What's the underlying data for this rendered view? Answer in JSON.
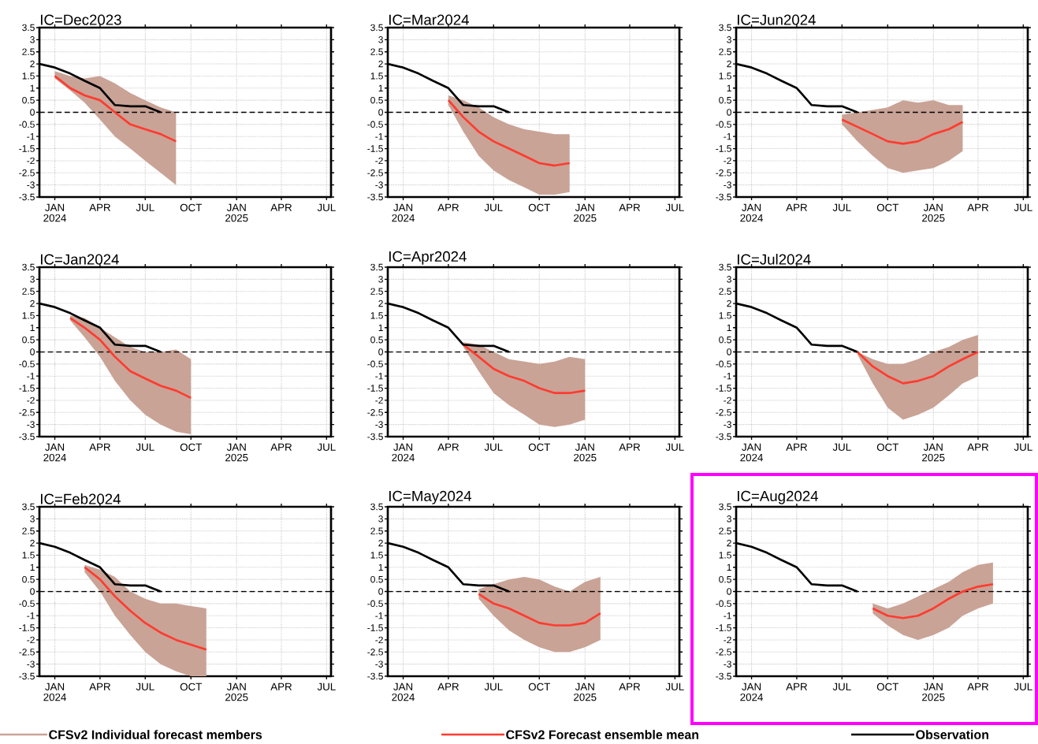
{
  "chart_data": [
    {
      "type": "line",
      "title": "IC=Dec2023",
      "legend": "bottom",
      "grid": true,
      "xlim": [
        "2023-12-01",
        "2025-07-10"
      ],
      "ylim": [
        -3.5,
        3.5
      ],
      "xticks": [
        {
          "value": "2024-01-01",
          "label": "JAN 2024"
        },
        {
          "value": "2024-04-01",
          "label": "APR"
        },
        {
          "value": "2024-07-01",
          "label": "JUL"
        },
        {
          "value": "2024-10-01",
          "label": "OCT"
        },
        {
          "value": "2025-01-01",
          "label": "JAN 2025"
        },
        {
          "value": "2025-04-01",
          "label": "APR"
        },
        {
          "value": "2025-07-01",
          "label": "JUL"
        }
      ],
      "yticks": [
        -3.5,
        -3,
        -2.5,
        -2,
        -1.5,
        -1,
        -0.5,
        0,
        0.5,
        1,
        1.5,
        2,
        2.5,
        3,
        3.5
      ],
      "annotations": [
        "CFSv2 Individual forecast members"
      ],
      "ref_lines": [
        {
          "axis": "y",
          "value": 0,
          "color": "#000000",
          "line_style": "dashed"
        }
      ],
      "series": [
        {
          "name": "CFSv2 Forecast ensemble mean",
          "color": "#ff3b30",
          "x": [
            "2024-01-01",
            "2024-02-01",
            "2024-03-01",
            "2024-04-01",
            "2024-05-01",
            "2024-06-01",
            "2024-07-01",
            "2024-08-01",
            "2024-09-01"
          ],
          "values": [
            1.5,
            1.0,
            0.7,
            0.5,
            0.0,
            -0.5,
            -0.7,
            -0.9,
            -1.2
          ],
          "lower": [
            1.4,
            0.9,
            0.4,
            -0.3,
            -1.0,
            -1.5,
            -2.0,
            -2.5,
            -3.0
          ],
          "upper": [
            1.7,
            1.5,
            1.4,
            1.5,
            1.2,
            0.8,
            0.5,
            0.2,
            0.0
          ]
        },
        {
          "name": "Observation",
          "color": "#000000",
          "x": [
            "2023-12-01",
            "2024-01-01",
            "2024-02-01",
            "2024-03-01",
            "2024-04-01",
            "2024-05-01",
            "2024-06-01",
            "2024-07-01",
            "2024-08-01"
          ],
          "values": [
            2.0,
            1.85,
            1.6,
            1.3,
            1.0,
            0.3,
            0.25,
            0.25,
            0.0
          ]
        }
      ]
    },
    {
      "type": "line",
      "title": "IC=Mar2024",
      "grid": true,
      "xlim": [
        "2023-12-01",
        "2025-07-10"
      ],
      "ylim": [
        -3.5,
        3.5
      ],
      "xticks": [
        {
          "value": "2024-01-01",
          "label": "JAN 2024"
        },
        {
          "value": "2024-04-01",
          "label": "APR"
        },
        {
          "value": "2024-07-01",
          "label": "JUL"
        },
        {
          "value": "2024-10-01",
          "label": "OCT"
        },
        {
          "value": "2025-01-01",
          "label": "JAN 2025"
        },
        {
          "value": "2025-04-01",
          "label": "APR"
        },
        {
          "value": "2025-07-01",
          "label": "JUL"
        }
      ],
      "yticks": [
        -3.5,
        -3,
        -2.5,
        -2,
        -1.5,
        -1,
        -0.5,
        0,
        0.5,
        1,
        1.5,
        2,
        2.5,
        3,
        3.5
      ],
      "ref_lines": [
        {
          "axis": "y",
          "value": 0,
          "color": "#000000",
          "line_style": "dashed"
        }
      ],
      "series": [
        {
          "color": "#ff3b30",
          "x": [
            "2024-04-01",
            "2024-05-01",
            "2024-06-01",
            "2024-07-01",
            "2024-08-01",
            "2024-09-01",
            "2024-10-01",
            "2024-11-01",
            "2024-12-01"
          ],
          "values": [
            0.5,
            -0.2,
            -0.8,
            -1.2,
            -1.5,
            -1.8,
            -2.1,
            -2.2,
            -2.1
          ],
          "lower": [
            0.3,
            -0.8,
            -1.8,
            -2.4,
            -2.8,
            -3.1,
            -3.4,
            -3.4,
            -3.3
          ],
          "upper": [
            0.7,
            0.5,
            0.2,
            -0.2,
            -0.5,
            -0.7,
            -0.8,
            -0.9,
            -0.9
          ]
        },
        {
          "color": "#000000",
          "x": [
            "2023-12-01",
            "2024-01-01",
            "2024-02-01",
            "2024-03-01",
            "2024-04-01",
            "2024-05-01",
            "2024-06-01",
            "2024-07-01",
            "2024-08-01"
          ],
          "values": [
            2.0,
            1.85,
            1.6,
            1.3,
            1.0,
            0.3,
            0.25,
            0.25,
            0.0
          ]
        }
      ]
    },
    {
      "type": "line",
      "title": "IC=Jun2024",
      "grid": true,
      "xlim": [
        "2023-12-01",
        "2025-07-10"
      ],
      "ylim": [
        -3.5,
        3.5
      ],
      "xticks": [
        {
          "value": "2024-01-01",
          "label": "JAN 2024"
        },
        {
          "value": "2024-04-01",
          "label": "APR"
        },
        {
          "value": "2024-07-01",
          "label": "JUL"
        },
        {
          "value": "2024-10-01",
          "label": "OCT"
        },
        {
          "value": "2025-01-01",
          "label": "JAN 2025"
        },
        {
          "value": "2025-04-01",
          "label": "APR"
        },
        {
          "value": "2025-07-01",
          "label": "JUL"
        }
      ],
      "yticks": [
        -3.5,
        -3,
        -2.5,
        -2,
        -1.5,
        -1,
        -0.5,
        0,
        0.5,
        1,
        1.5,
        2,
        2.5,
        3,
        3.5
      ],
      "ref_lines": [
        {
          "axis": "y",
          "value": 0,
          "color": "#000000",
          "line_style": "dashed"
        }
      ],
      "series": [
        {
          "color": "#ff3b30",
          "x": [
            "2024-07-01",
            "2024-08-01",
            "2024-09-01",
            "2024-10-01",
            "2024-11-01",
            "2024-12-01",
            "2025-01-01",
            "2025-02-01",
            "2025-03-01"
          ],
          "values": [
            -0.3,
            -0.6,
            -0.9,
            -1.2,
            -1.3,
            -1.2,
            -0.9,
            -0.7,
            -0.4
          ],
          "lower": [
            -0.5,
            -1.2,
            -1.8,
            -2.3,
            -2.5,
            -2.4,
            -2.3,
            -2.0,
            -1.6
          ],
          "upper": [
            -0.1,
            0.0,
            0.1,
            0.2,
            0.5,
            0.4,
            0.5,
            0.3,
            0.3
          ]
        },
        {
          "color": "#000000",
          "x": [
            "2023-12-01",
            "2024-01-01",
            "2024-02-01",
            "2024-03-01",
            "2024-04-01",
            "2024-05-01",
            "2024-06-01",
            "2024-07-01",
            "2024-08-01"
          ],
          "values": [
            2.0,
            1.85,
            1.6,
            1.3,
            1.0,
            0.3,
            0.25,
            0.25,
            0.0
          ]
        }
      ]
    },
    {
      "type": "line",
      "title": "IC=Jan2024",
      "grid": true,
      "xlim": [
        "2023-12-01",
        "2025-07-10"
      ],
      "ylim": [
        -3.5,
        3.5
      ],
      "xticks": [
        {
          "value": "2024-01-01",
          "label": "JAN 2024"
        },
        {
          "value": "2024-04-01",
          "label": "APR"
        },
        {
          "value": "2024-07-01",
          "label": "JUL"
        },
        {
          "value": "2024-10-01",
          "label": "OCT"
        },
        {
          "value": "2025-01-01",
          "label": "JAN 2025"
        },
        {
          "value": "2025-04-01",
          "label": "APR"
        },
        {
          "value": "2025-07-01",
          "label": "JUL"
        }
      ],
      "yticks": [
        -3.5,
        -3,
        -2.5,
        -2,
        -1.5,
        -1,
        -0.5,
        0,
        0.5,
        1,
        1.5,
        2,
        2.5,
        3,
        3.5
      ],
      "ref_lines": [
        {
          "axis": "y",
          "value": 0,
          "color": "#000000",
          "line_style": "dashed"
        }
      ],
      "series": [
        {
          "color": "#ff3b30",
          "x": [
            "2024-02-01",
            "2024-03-01",
            "2024-04-01",
            "2024-05-01",
            "2024-06-01",
            "2024-07-01",
            "2024-08-01",
            "2024-09-01",
            "2024-10-01"
          ],
          "values": [
            1.4,
            1.0,
            0.5,
            -0.2,
            -0.8,
            -1.1,
            -1.4,
            -1.6,
            -1.9
          ],
          "lower": [
            1.3,
            0.6,
            -0.2,
            -1.2,
            -2.0,
            -2.6,
            -3.0,
            -3.3,
            -3.4
          ],
          "upper": [
            1.5,
            1.4,
            1.0,
            0.6,
            0.2,
            0.0,
            0.0,
            0.1,
            -0.3
          ]
        },
        {
          "color": "#000000",
          "x": [
            "2023-12-01",
            "2024-01-01",
            "2024-02-01",
            "2024-03-01",
            "2024-04-01",
            "2024-05-01",
            "2024-06-01",
            "2024-07-01",
            "2024-08-01"
          ],
          "values": [
            2.0,
            1.85,
            1.6,
            1.3,
            1.0,
            0.3,
            0.25,
            0.25,
            0.0
          ]
        }
      ]
    },
    {
      "type": "line",
      "title": "IC=Apr2024",
      "grid": true,
      "xlim": [
        "2023-12-01",
        "2025-07-10"
      ],
      "ylim": [
        -3.5,
        3.5
      ],
      "xticks": [
        {
          "value": "2024-01-01",
          "label": "JAN 2024"
        },
        {
          "value": "2024-04-01",
          "label": "APR"
        },
        {
          "value": "2024-07-01",
          "label": "JUL"
        },
        {
          "value": "2024-10-01",
          "label": "OCT"
        },
        {
          "value": "2025-01-01",
          "label": "JAN 2025"
        },
        {
          "value": "2025-04-01",
          "label": "APR"
        },
        {
          "value": "2025-07-01",
          "label": "JUL"
        }
      ],
      "yticks": [
        -3.5,
        -3,
        -2.5,
        -2,
        -1.5,
        -1,
        -0.5,
        0,
        0.5,
        1,
        1.5,
        2,
        2.5,
        3,
        3.5
      ],
      "ref_lines": [
        {
          "axis": "y",
          "value": 0,
          "color": "#000000",
          "line_style": "dashed"
        }
      ],
      "series": [
        {
          "color": "#ff3b30",
          "x": [
            "2024-05-01",
            "2024-06-01",
            "2024-07-01",
            "2024-08-01",
            "2024-09-01",
            "2024-10-01",
            "2024-11-01",
            "2024-12-01",
            "2025-01-01"
          ],
          "values": [
            0.3,
            -0.2,
            -0.7,
            -1.0,
            -1.2,
            -1.5,
            -1.7,
            -1.7,
            -1.6
          ],
          "lower": [
            0.2,
            -0.8,
            -1.7,
            -2.2,
            -2.6,
            -3.0,
            -3.1,
            -3.0,
            -2.8
          ],
          "upper": [
            0.4,
            0.3,
            0.0,
            -0.3,
            -0.4,
            -0.5,
            -0.4,
            -0.2,
            -0.3
          ]
        },
        {
          "color": "#000000",
          "x": [
            "2023-12-01",
            "2024-01-01",
            "2024-02-01",
            "2024-03-01",
            "2024-04-01",
            "2024-05-01",
            "2024-06-01",
            "2024-07-01",
            "2024-08-01"
          ],
          "values": [
            2.0,
            1.85,
            1.6,
            1.3,
            1.0,
            0.3,
            0.25,
            0.25,
            0.0
          ]
        }
      ]
    },
    {
      "type": "line",
      "title": "IC=Jul2024",
      "grid": true,
      "xlim": [
        "2023-12-01",
        "2025-07-10"
      ],
      "ylim": [
        -3.5,
        3.5
      ],
      "xticks": [
        {
          "value": "2024-01-01",
          "label": "JAN 2024"
        },
        {
          "value": "2024-04-01",
          "label": "APR"
        },
        {
          "value": "2024-07-01",
          "label": "JUL"
        },
        {
          "value": "2024-10-01",
          "label": "OCT"
        },
        {
          "value": "2025-01-01",
          "label": "JAN 2025"
        },
        {
          "value": "2025-04-01",
          "label": "APR"
        },
        {
          "value": "2025-07-01",
          "label": "JUL"
        }
      ],
      "yticks": [
        -3.5,
        -3,
        -2.5,
        -2,
        -1.5,
        -1,
        -0.5,
        0,
        0.5,
        1,
        1.5,
        2,
        2.5,
        3,
        3.5
      ],
      "ref_lines": [
        {
          "axis": "y",
          "value": 0,
          "color": "#000000",
          "line_style": "dashed"
        }
      ],
      "series": [
        {
          "color": "#ff3b30",
          "x": [
            "2024-08-01",
            "2024-09-01",
            "2024-10-01",
            "2024-11-01",
            "2024-12-01",
            "2025-01-01",
            "2025-02-01",
            "2025-03-01",
            "2025-04-01"
          ],
          "values": [
            0.0,
            -0.6,
            -1.0,
            -1.3,
            -1.2,
            -1.0,
            -0.6,
            -0.3,
            0.0
          ],
          "lower": [
            -0.1,
            -1.3,
            -2.3,
            -2.8,
            -2.6,
            -2.3,
            -1.8,
            -1.3,
            -1.0
          ],
          "upper": [
            0.0,
            -0.3,
            -0.5,
            -0.5,
            -0.3,
            0.0,
            0.2,
            0.5,
            0.7
          ]
        },
        {
          "color": "#000000",
          "x": [
            "2023-12-01",
            "2024-01-01",
            "2024-02-01",
            "2024-03-01",
            "2024-04-01",
            "2024-05-01",
            "2024-06-01",
            "2024-07-01",
            "2024-08-01"
          ],
          "values": [
            2.0,
            1.85,
            1.6,
            1.3,
            1.0,
            0.3,
            0.25,
            0.25,
            0.0
          ]
        }
      ]
    },
    {
      "type": "line",
      "title": "IC=Feb2024",
      "grid": true,
      "xlim": [
        "2023-12-01",
        "2025-07-10"
      ],
      "ylim": [
        -3.5,
        3.5
      ],
      "xticks": [
        {
          "value": "2024-01-01",
          "label": "JAN 2024"
        },
        {
          "value": "2024-04-01",
          "label": "APR"
        },
        {
          "value": "2024-07-01",
          "label": "JUL"
        },
        {
          "value": "2024-10-01",
          "label": "OCT"
        },
        {
          "value": "2025-01-01",
          "label": "JAN 2025"
        },
        {
          "value": "2025-04-01",
          "label": "APR"
        },
        {
          "value": "2025-07-01",
          "label": "JUL"
        }
      ],
      "yticks": [
        -3.5,
        -3,
        -2.5,
        -2,
        -1.5,
        -1,
        -0.5,
        0,
        0.5,
        1,
        1.5,
        2,
        2.5,
        3,
        3.5
      ],
      "ref_lines": [
        {
          "axis": "y",
          "value": 0,
          "color": "#000000",
          "line_style": "dashed"
        }
      ],
      "series": [
        {
          "color": "#ff3b30",
          "x": [
            "2024-03-01",
            "2024-04-01",
            "2024-05-01",
            "2024-06-01",
            "2024-07-01",
            "2024-08-01",
            "2024-09-01",
            "2024-10-01",
            "2024-11-01"
          ],
          "values": [
            1.0,
            0.5,
            -0.2,
            -0.8,
            -1.3,
            -1.7,
            -2.0,
            -2.2,
            -2.4
          ],
          "lower": [
            0.8,
            0.0,
            -1.0,
            -1.8,
            -2.5,
            -3.0,
            -3.3,
            -3.5,
            -3.5
          ],
          "upper": [
            1.1,
            0.9,
            0.6,
            0.0,
            -0.3,
            -0.5,
            -0.5,
            -0.6,
            -0.7
          ]
        },
        {
          "color": "#000000",
          "x": [
            "2023-12-01",
            "2024-01-01",
            "2024-02-01",
            "2024-03-01",
            "2024-04-01",
            "2024-05-01",
            "2024-06-01",
            "2024-07-01",
            "2024-08-01"
          ],
          "values": [
            2.0,
            1.85,
            1.6,
            1.3,
            1.0,
            0.3,
            0.25,
            0.25,
            0.0
          ]
        }
      ]
    },
    {
      "type": "line",
      "title": "IC=May2024",
      "grid": true,
      "xlim": [
        "2023-12-01",
        "2025-07-10"
      ],
      "ylim": [
        -3.5,
        3.5
      ],
      "xticks": [
        {
          "value": "2024-01-01",
          "label": "JAN 2024"
        },
        {
          "value": "2024-04-01",
          "label": "APR"
        },
        {
          "value": "2024-07-01",
          "label": "JUL"
        },
        {
          "value": "2024-10-01",
          "label": "OCT"
        },
        {
          "value": "2025-01-01",
          "label": "JAN 2025"
        },
        {
          "value": "2025-04-01",
          "label": "APR"
        },
        {
          "value": "2025-07-01",
          "label": "JUL"
        }
      ],
      "yticks": [
        -3.5,
        -3,
        -2.5,
        -2,
        -1.5,
        -1,
        -0.5,
        0,
        0.5,
        1,
        1.5,
        2,
        2.5,
        3,
        3.5
      ],
      "ref_lines": [
        {
          "axis": "y",
          "value": 0,
          "color": "#000000",
          "line_style": "dashed"
        }
      ],
      "series": [
        {
          "color": "#ff3b30",
          "x": [
            "2024-06-01",
            "2024-07-01",
            "2024-08-01",
            "2024-09-01",
            "2024-10-01",
            "2024-11-01",
            "2024-12-01",
            "2025-01-01",
            "2025-02-01"
          ],
          "values": [
            -0.1,
            -0.5,
            -0.7,
            -1.0,
            -1.3,
            -1.4,
            -1.4,
            -1.3,
            -0.9
          ],
          "lower": [
            -0.3,
            -1.0,
            -1.6,
            -2.0,
            -2.3,
            -2.5,
            -2.5,
            -2.3,
            -2.0
          ],
          "upper": [
            0.1,
            0.3,
            0.5,
            0.6,
            0.5,
            0.2,
            0.0,
            0.4,
            0.6
          ]
        },
        {
          "color": "#000000",
          "x": [
            "2023-12-01",
            "2024-01-01",
            "2024-02-01",
            "2024-03-01",
            "2024-04-01",
            "2024-05-01",
            "2024-06-01",
            "2024-07-01",
            "2024-08-01"
          ],
          "values": [
            2.0,
            1.85,
            1.6,
            1.3,
            1.0,
            0.3,
            0.25,
            0.25,
            0.0
          ]
        }
      ]
    },
    {
      "type": "line",
      "title": "IC=Aug2024",
      "grid": true,
      "xlim": [
        "2023-12-01",
        "2025-07-10"
      ],
      "ylim": [
        -3.5,
        3.5
      ],
      "xticks": [
        {
          "value": "2024-01-01",
          "label": "JAN 2024"
        },
        {
          "value": "2024-04-01",
          "label": "APR"
        },
        {
          "value": "2024-07-01",
          "label": "JUL"
        },
        {
          "value": "2024-10-01",
          "label": "OCT"
        },
        {
          "value": "2025-01-01",
          "label": "JAN 2025"
        },
        {
          "value": "2025-04-01",
          "label": "APR"
        },
        {
          "value": "2025-07-01",
          "label": "JUL"
        }
      ],
      "yticks": [
        -3.5,
        -3,
        -2.5,
        -2,
        -1.5,
        -1,
        -0.5,
        0,
        0.5,
        1,
        1.5,
        2,
        2.5,
        3,
        3.5
      ],
      "ref_lines": [
        {
          "axis": "y",
          "value": 0,
          "color": "#000000",
          "line_style": "dashed"
        }
      ],
      "series": [
        {
          "color": "#ff3b30",
          "x": [
            "2024-09-01",
            "2024-10-01",
            "2024-11-01",
            "2024-12-01",
            "2025-01-01",
            "2025-02-01",
            "2025-03-01",
            "2025-04-01",
            "2025-05-01"
          ],
          "values": [
            -0.7,
            -1.0,
            -1.1,
            -1.0,
            -0.7,
            -0.3,
            0.0,
            0.2,
            0.3
          ],
          "lower": [
            -0.9,
            -1.4,
            -1.8,
            -2.0,
            -1.8,
            -1.5,
            -1.0,
            -0.7,
            -0.5
          ],
          "upper": [
            -0.5,
            -0.7,
            -0.5,
            -0.2,
            0.1,
            0.4,
            0.8,
            1.1,
            1.2
          ]
        },
        {
          "color": "#000000",
          "x": [
            "2023-12-01",
            "2024-01-01",
            "2024-02-01",
            "2024-03-01",
            "2024-04-01",
            "2024-05-01",
            "2024-06-01",
            "2024-07-01",
            "2024-08-01"
          ],
          "values": [
            2.0,
            1.85,
            1.6,
            1.3,
            1.0,
            0.3,
            0.25,
            0.25,
            0.0
          ]
        }
      ]
    }
  ]
}
